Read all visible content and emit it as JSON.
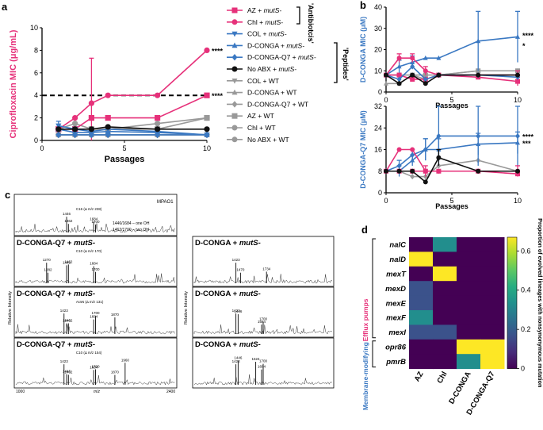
{
  "panels": {
    "a": "a",
    "b": "b",
    "c": "c",
    "d": "d"
  },
  "colors": {
    "pink": "#e6317a",
    "blue": "#3a78c2",
    "black": "#111111",
    "gray": "#999999",
    "blueTitle": "#3a78c2"
  },
  "legend_a": {
    "bracket_antibiotics": "'Antibiotcis'",
    "bracket_peptides": "'Peptides'",
    "entries": [
      {
        "label": "AZ + mutS-",
        "color": "#e6317a",
        "marker": "square"
      },
      {
        "label": "Chl + mutS-",
        "color": "#e6317a",
        "marker": "circle"
      },
      {
        "label": "COL + mutS-",
        "color": "#3a78c2",
        "marker": "tri-down"
      },
      {
        "label": "D-CONGA + mutS-",
        "color": "#3a78c2",
        "marker": "tri-up"
      },
      {
        "label": "D-CONGA-Q7 + mutS-",
        "color": "#3a78c2",
        "marker": "diamond"
      },
      {
        "label": "No ABX + mutS-",
        "color": "#111111",
        "marker": "circle"
      },
      {
        "label": "COL + WT",
        "color": "#999999",
        "marker": "tri-down"
      },
      {
        "label": "D-CONGA + WT",
        "color": "#999999",
        "marker": "tri-up"
      },
      {
        "label": "D-CONGA-Q7 + WT",
        "color": "#999999",
        "marker": "diamond"
      },
      {
        "label": "AZ + WT",
        "color": "#999999",
        "marker": "square"
      },
      {
        "label": "Chl + WT",
        "color": "#999999",
        "marker": "circle"
      },
      {
        "label": "No ABX + WT",
        "color": "#999999",
        "marker": "circle"
      }
    ]
  },
  "chart_data": [
    {
      "id": "a",
      "type": "line",
      "ylabel": "Ciprofloxacin MIC (μg/mL)",
      "xlabel": "Passages",
      "xlim": [
        0,
        10
      ],
      "ylim": [
        0,
        10
      ],
      "xticks": [
        0,
        5,
        10
      ],
      "yticks": [
        0,
        2,
        4,
        6,
        8,
        10
      ],
      "dashed_line_y": 4,
      "significance": [
        {
          "y": 8,
          "text": "****"
        },
        {
          "y": 4,
          "text": "****"
        }
      ],
      "x": [
        1,
        2,
        3,
        4,
        7,
        10
      ],
      "series": [
        {
          "name": "AZ + mutS-",
          "color": "#e6317a",
          "marker": "square",
          "values": [
            1,
            1,
            2,
            2,
            2,
            4
          ],
          "err": [
            0,
            0,
            0,
            0,
            0,
            0
          ]
        },
        {
          "name": "Chl + mutS-",
          "color": "#e6317a",
          "marker": "circle",
          "values": [
            1,
            2,
            3.3,
            4,
            4,
            8
          ],
          "err": [
            0,
            0,
            4,
            0,
            0,
            0
          ]
        },
        {
          "name": "COL + mutS-",
          "color": "#3a78c2",
          "marker": "tri-down",
          "values": [
            1.3,
            1,
            0.8,
            1,
            0.8,
            0.5
          ],
          "err": [
            0.4,
            0,
            0.3,
            0,
            0,
            0
          ]
        },
        {
          "name": "D-CONGA + mutS-",
          "color": "#3a78c2",
          "marker": "tri-up",
          "values": [
            1,
            0.7,
            0.7,
            0.8,
            0.7,
            0.5
          ],
          "err": [
            0,
            0,
            0,
            0,
            0,
            0
          ]
        },
        {
          "name": "D-CONGA-Q7 + mutS-",
          "color": "#3a78c2",
          "marker": "diamond",
          "values": [
            0.5,
            0.5,
            0.5,
            0.5,
            0.5,
            0.5
          ],
          "err": [
            0,
            0,
            0,
            0,
            0,
            0
          ]
        },
        {
          "name": "No ABX + mutS-",
          "color": "#111111",
          "marker": "circle",
          "values": [
            1,
            1,
            1,
            1.2,
            1,
            1
          ],
          "err": [
            0,
            0,
            0,
            0,
            0,
            0
          ]
        },
        {
          "name": "COL + WT",
          "color": "#999999",
          "marker": "tri-down",
          "values": [
            0.5,
            0.5,
            0.5,
            0.5,
            0.5,
            0.5
          ],
          "err": [
            0,
            0,
            0,
            0,
            0,
            0
          ]
        },
        {
          "name": "D-CONGA + WT",
          "color": "#999999",
          "marker": "tri-up",
          "values": [
            0.5,
            0.5,
            0.5,
            0.5,
            0.5,
            0.5
          ],
          "err": [
            0,
            0,
            0,
            0,
            0,
            0
          ]
        },
        {
          "name": "D-CONGA-Q7 + WT",
          "color": "#999999",
          "marker": "diamond",
          "values": [
            0.5,
            0.5,
            0.5,
            0.5,
            0.5,
            0.5
          ],
          "err": [
            0,
            0,
            0,
            0,
            0,
            0
          ]
        },
        {
          "name": "AZ + WT",
          "color": "#999999",
          "marker": "square",
          "values": [
            1,
            1,
            1,
            1,
            1,
            2
          ],
          "err": [
            0,
            0,
            0,
            0,
            0,
            0
          ]
        },
        {
          "name": "Chl + WT",
          "color": "#999999",
          "marker": "circle",
          "values": [
            1,
            1.5,
            1,
            1,
            1.5,
            2
          ],
          "err": [
            0,
            0,
            0,
            0,
            0,
            0
          ]
        },
        {
          "name": "No ABX + WT",
          "color": "#999999",
          "marker": "circle",
          "values": [
            0.5,
            0.5,
            0.5,
            0.5,
            0.5,
            0.5
          ],
          "err": [
            0,
            0,
            0,
            0,
            0,
            0
          ]
        }
      ]
    },
    {
      "id": "b1",
      "type": "line",
      "ylabel": "D-CONGA MIC (μM)",
      "xlabel": "Passages",
      "xlim": [
        0,
        10
      ],
      "ylim": [
        0,
        40
      ],
      "xticks": [
        0,
        5,
        10
      ],
      "yticks": [
        0,
        10,
        20,
        30,
        40
      ],
      "significance": [
        {
          "y": 27,
          "text": "****"
        },
        {
          "y": 22,
          "text": "*"
        }
      ],
      "x": [
        0,
        1,
        2,
        3,
        4,
        7,
        10
      ],
      "series": [
        {
          "name": "D-CONGA + mutS-",
          "color": "#3a78c2",
          "marker": "tri-up",
          "values": [
            8,
            12,
            14,
            16,
            16,
            24,
            26
          ],
          "err": [
            0,
            3,
            3,
            0,
            0,
            14,
            12
          ]
        },
        {
          "name": "Chl + mutS-",
          "color": "#e6317a",
          "marker": "circle",
          "values": [
            8,
            16,
            16,
            10,
            8,
            8,
            8
          ],
          "err": [
            0,
            2,
            2,
            2,
            0,
            0,
            2
          ]
        },
        {
          "name": "AZ + mutS-",
          "color": "#e6317a",
          "marker": "square",
          "values": [
            8,
            8,
            6,
            6,
            8,
            7,
            5
          ],
          "err": [
            0,
            0,
            0,
            0,
            0,
            0,
            2
          ]
        },
        {
          "name": "D-CONGA-Q7 + mutS-",
          "color": "#3a78c2",
          "marker": "diamond",
          "values": [
            8,
            6,
            12,
            6,
            8,
            8,
            7
          ],
          "err": [
            0,
            0,
            0,
            0,
            0,
            0,
            0
          ]
        },
        {
          "name": "No ABX + mutS-",
          "color": "#111111",
          "marker": "circle",
          "values": [
            8,
            4,
            8,
            4,
            8,
            8,
            8
          ],
          "err": [
            0,
            0,
            0,
            0,
            0,
            0,
            0
          ]
        },
        {
          "name": "D-CONGA + WT",
          "color": "#999999",
          "marker": "tri-up",
          "values": [
            4,
            4,
            8,
            6,
            8,
            10,
            10
          ],
          "err": [
            0,
            0,
            0,
            0,
            0,
            0,
            0
          ]
        },
        {
          "name": "AZ + WT",
          "color": "#999999",
          "marker": "square",
          "values": [
            8,
            8,
            8,
            8,
            8,
            10,
            10
          ],
          "err": [
            0,
            0,
            0,
            0,
            0,
            0,
            0
          ]
        }
      ]
    },
    {
      "id": "b2",
      "type": "line",
      "ylabel": "D-CONGA-Q7 MIC (μM)",
      "xlabel": "Passages",
      "xlim": [
        0,
        10
      ],
      "ylim": [
        0,
        32
      ],
      "xticks": [
        0,
        5,
        10
      ],
      "yticks": [
        0,
        8,
        16,
        24,
        32
      ],
      "significance": [
        {
          "y": 21,
          "text": "****"
        },
        {
          "y": 18.5,
          "text": "***"
        }
      ],
      "x": [
        0,
        1,
        2,
        3,
        4,
        7,
        10
      ],
      "series": [
        {
          "name": "D-CONGA-Q7 + mutS-",
          "color": "#3a78c2",
          "marker": "diamond",
          "values": [
            8,
            10,
            14,
            16,
            21,
            21,
            21
          ],
          "err": [
            0,
            2,
            2,
            4,
            11,
            11,
            11
          ]
        },
        {
          "name": "D-CONGA + mutS-",
          "color": "#3a78c2",
          "marker": "tri-up",
          "values": [
            8,
            8,
            12,
            16,
            16,
            18,
            18.5
          ],
          "err": [
            0,
            2,
            2,
            4,
            4,
            4,
            4
          ]
        },
        {
          "name": "Chl + mutS-",
          "color": "#e6317a",
          "marker": "circle",
          "values": [
            8,
            16,
            16,
            8,
            8,
            8,
            8
          ],
          "err": [
            0,
            0,
            0,
            2,
            0,
            0,
            2
          ]
        },
        {
          "name": "AZ + mutS-",
          "color": "#e6317a",
          "marker": "square",
          "values": [
            8,
            8,
            8,
            8,
            8,
            8,
            7
          ],
          "err": [
            0,
            0,
            0,
            0,
            0,
            0,
            0
          ]
        },
        {
          "name": "No ABX + mutS-",
          "color": "#111111",
          "marker": "circle",
          "values": [
            8,
            8,
            8,
            4,
            13,
            8,
            8
          ],
          "err": [
            0,
            0,
            0,
            0,
            3,
            0,
            0
          ]
        },
        {
          "name": "D-CONGA-Q7 + WT",
          "color": "#999999",
          "marker": "diamond",
          "values": [
            8,
            8,
            6,
            6,
            10,
            12,
            8
          ],
          "err": [
            0,
            0,
            0,
            0,
            0,
            0,
            0
          ]
        },
        {
          "name": "Chl + WT",
          "color": "#999999",
          "marker": "circle",
          "values": [
            8,
            8,
            8,
            8,
            8,
            8,
            8
          ],
          "err": [
            0,
            0,
            0,
            0,
            0,
            0,
            0
          ]
        }
      ]
    },
    {
      "id": "d",
      "type": "heatmap",
      "rows": [
        "nalC",
        "nalD",
        "mexT",
        "mexD",
        "mexE",
        "mexF",
        "mexI",
        "opr86",
        "pmrB"
      ],
      "cols": [
        "AZ",
        "Chl",
        "D-CONGA",
        "D-CONGA-Q7"
      ],
      "values": [
        [
          0,
          0.33,
          0,
          0
        ],
        [
          0.67,
          0,
          0,
          0
        ],
        [
          0,
          0.67,
          0,
          0
        ],
        [
          0.17,
          0,
          0,
          0
        ],
        [
          0.17,
          0,
          0,
          0
        ],
        [
          0.33,
          0,
          0,
          0
        ],
        [
          0.17,
          0.17,
          0,
          0
        ],
        [
          0,
          0,
          0.67,
          0.67
        ],
        [
          0,
          0,
          0.33,
          0.67
        ]
      ],
      "colorbar_label": "Proportion of evolved lineages with nonsynonymous mutation",
      "colorbar_ticks": [
        0,
        0.2,
        0.4,
        0.6
      ],
      "colorbar_range": [
        0,
        0.67
      ],
      "group_labels": [
        {
          "label": "Efflux pumps",
          "color": "#e6317a"
        },
        {
          "label": "Membrane-modifying",
          "color": "#3a78c2"
        }
      ]
    }
  ],
  "panel_c": {
    "ylabel": "Relative Intensity",
    "xlabel": "m/z",
    "x_min": "1000",
    "x_max": "2400",
    "top": {
      "title": "MPAO1",
      "note1": "1446/1684 – one OH",
      "note2": "1462/1700 – two OH",
      "peak_labels": [
        "1446",
        "1462",
        "1684",
        "1700"
      ],
      "annotation": "C16 (Δ m/z 238)"
    },
    "left": [
      {
        "title": "D-CONGA-Q7 + mutS-",
        "labels": [
          "1270",
          "1282",
          "1446",
          "1462",
          "1684",
          "1700"
        ],
        "annotation": "C10 (Δ m/z 170)"
      },
      {
        "title": "D-CONGA-Q7 + mutS-",
        "labels": [
          "1423",
          "1446",
          "1462",
          "1684",
          "1700",
          "1870"
        ],
        "annotation": "AraN (Δ m/z 131)"
      },
      {
        "title": "D-CONGA-Q7 + mutS-",
        "labels": [
          "1423",
          "1446",
          "1462",
          "1684",
          "1700",
          "1870",
          "1960"
        ],
        "annotation": "C10 (Δ m/z 154)"
      }
    ],
    "right": [
      {
        "title": "D-CONGA + mutS-",
        "labels": [
          "1423",
          "1470",
          "1734"
        ]
      },
      {
        "title": "D-CONGA + mutS-",
        "labels": [
          "1423",
          "1446",
          "1684",
          "1700"
        ]
      },
      {
        "title": "D-CONGA + mutS-",
        "labels": [
          "1423",
          "1446",
          "1684",
          "1624",
          "1700"
        ]
      }
    ]
  }
}
